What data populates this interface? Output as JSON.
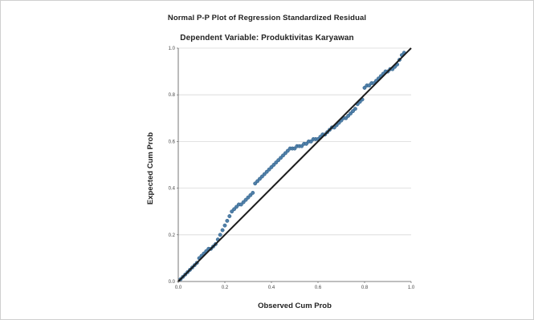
{
  "chart_data": {
    "type": "scatter",
    "title": "Normal P-P Plot of Regression Standardized Residual",
    "subtitle": "Dependent Variable: Produktivitas Karyawan",
    "xlabel": "Observed Cum Prob",
    "ylabel": "Expected Cum Prob",
    "xlim": [
      0,
      1
    ],
    "ylim": [
      0,
      1
    ],
    "xticks": [
      "0.0",
      "0.2",
      "0.4",
      "0.6",
      "0.8",
      "1.0"
    ],
    "yticks": [
      "0.0",
      "0.2",
      "0.4",
      "0.6",
      "0.8",
      "1.0"
    ],
    "grid": "horizontal",
    "reference_line": {
      "from": [
        0,
        0
      ],
      "to": [
        1,
        1
      ]
    },
    "point_color": "#4f7fa8",
    "line_color": "#1a1a1a",
    "points": [
      [
        0.01,
        0.01
      ],
      [
        0.02,
        0.02
      ],
      [
        0.03,
        0.03
      ],
      [
        0.04,
        0.04
      ],
      [
        0.05,
        0.05
      ],
      [
        0.06,
        0.06
      ],
      [
        0.07,
        0.07
      ],
      [
        0.08,
        0.08
      ],
      [
        0.09,
        0.1
      ],
      [
        0.1,
        0.11
      ],
      [
        0.11,
        0.12
      ],
      [
        0.12,
        0.13
      ],
      [
        0.13,
        0.14
      ],
      [
        0.14,
        0.14
      ],
      [
        0.15,
        0.15
      ],
      [
        0.16,
        0.16
      ],
      [
        0.17,
        0.18
      ],
      [
        0.18,
        0.2
      ],
      [
        0.19,
        0.22
      ],
      [
        0.2,
        0.24
      ],
      [
        0.21,
        0.26
      ],
      [
        0.22,
        0.28
      ],
      [
        0.23,
        0.3
      ],
      [
        0.24,
        0.31
      ],
      [
        0.25,
        0.32
      ],
      [
        0.26,
        0.33
      ],
      [
        0.27,
        0.33
      ],
      [
        0.28,
        0.34
      ],
      [
        0.29,
        0.35
      ],
      [
        0.3,
        0.36
      ],
      [
        0.31,
        0.37
      ],
      [
        0.32,
        0.38
      ],
      [
        0.33,
        0.42
      ],
      [
        0.34,
        0.43
      ],
      [
        0.35,
        0.44
      ],
      [
        0.36,
        0.45
      ],
      [
        0.37,
        0.46
      ],
      [
        0.38,
        0.47
      ],
      [
        0.39,
        0.48
      ],
      [
        0.4,
        0.49
      ],
      [
        0.41,
        0.5
      ],
      [
        0.42,
        0.51
      ],
      [
        0.43,
        0.52
      ],
      [
        0.44,
        0.53
      ],
      [
        0.45,
        0.54
      ],
      [
        0.46,
        0.55
      ],
      [
        0.47,
        0.56
      ],
      [
        0.48,
        0.57
      ],
      [
        0.49,
        0.57
      ],
      [
        0.5,
        0.57
      ],
      [
        0.51,
        0.58
      ],
      [
        0.52,
        0.58
      ],
      [
        0.53,
        0.58
      ],
      [
        0.54,
        0.59
      ],
      [
        0.55,
        0.59
      ],
      [
        0.56,
        0.6
      ],
      [
        0.57,
        0.6
      ],
      [
        0.58,
        0.61
      ],
      [
        0.59,
        0.61
      ],
      [
        0.6,
        0.61
      ],
      [
        0.61,
        0.62
      ],
      [
        0.62,
        0.63
      ],
      [
        0.63,
        0.63
      ],
      [
        0.64,
        0.64
      ],
      [
        0.65,
        0.65
      ],
      [
        0.66,
        0.66
      ],
      [
        0.67,
        0.66
      ],
      [
        0.68,
        0.67
      ],
      [
        0.69,
        0.68
      ],
      [
        0.7,
        0.69
      ],
      [
        0.71,
        0.7
      ],
      [
        0.72,
        0.7
      ],
      [
        0.73,
        0.71
      ],
      [
        0.74,
        0.72
      ],
      [
        0.75,
        0.73
      ],
      [
        0.76,
        0.74
      ],
      [
        0.77,
        0.76
      ],
      [
        0.78,
        0.77
      ],
      [
        0.79,
        0.78
      ],
      [
        0.8,
        0.83
      ],
      [
        0.81,
        0.84
      ],
      [
        0.82,
        0.84
      ],
      [
        0.83,
        0.85
      ],
      [
        0.84,
        0.85
      ],
      [
        0.85,
        0.86
      ],
      [
        0.86,
        0.87
      ],
      [
        0.87,
        0.88
      ],
      [
        0.88,
        0.89
      ],
      [
        0.89,
        0.9
      ],
      [
        0.9,
        0.9
      ],
      [
        0.91,
        0.91
      ],
      [
        0.92,
        0.91
      ],
      [
        0.93,
        0.92
      ],
      [
        0.94,
        0.93
      ],
      [
        0.95,
        0.95
      ],
      [
        0.96,
        0.97
      ],
      [
        0.97,
        0.98
      ]
    ]
  }
}
